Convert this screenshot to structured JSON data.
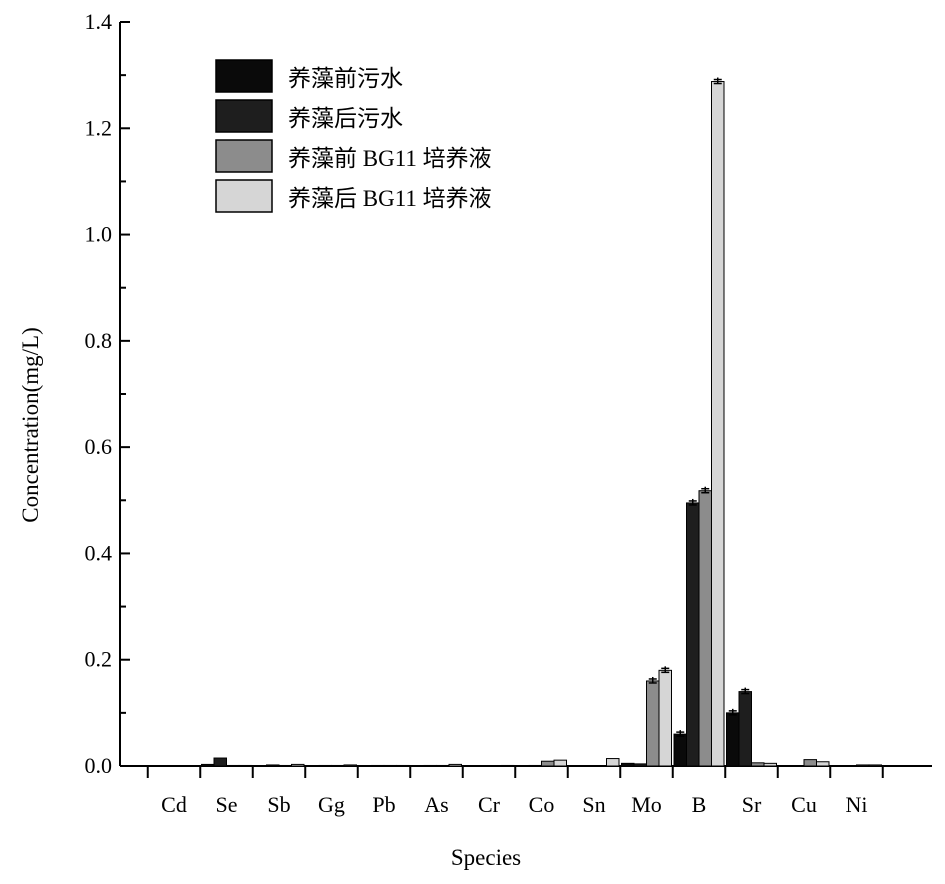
{
  "chart_data": {
    "type": "bar",
    "xlabel": "Species",
    "ylabel": "Concentration(mg/L)",
    "ylim": [
      0,
      1.4
    ],
    "y_ticks": [
      "0.0",
      "0.2",
      "0.4",
      "0.6",
      "0.8",
      "1.0",
      "1.2",
      "1.4"
    ],
    "categories": [
      "Cd",
      "Se",
      "Sb",
      "Gg",
      "Pb",
      "As",
      "Cr",
      "Co",
      "Sn",
      "Mo",
      "B",
      "Sr",
      "Cu",
      "Ni"
    ],
    "legend_position": "top-left",
    "series": [
      {
        "name": "养藻前污水",
        "color": "#0a0a0a",
        "values": [
          0.0,
          0.003,
          0.0,
          0.0,
          0.0,
          0.0,
          0.0,
          0.0,
          0.0,
          0.005,
          0.06,
          0.1,
          0.0,
          0.0
        ]
      },
      {
        "name": "养藻后污水",
        "color": "#1e1e1e",
        "values": [
          0.0,
          0.015,
          0.002,
          0.001,
          0.001,
          0.001,
          0.0,
          0.001,
          0.0,
          0.004,
          0.495,
          0.14,
          0.0,
          0.0
        ]
      },
      {
        "name": "养藻前 BG11 培养液",
        "color": "#8c8c8c",
        "values": [
          0.0,
          0.001,
          0.001,
          0.001,
          0.001,
          0.001,
          0.0,
          0.009,
          0.0,
          0.16,
          0.518,
          0.006,
          0.012,
          0.002
        ]
      },
      {
        "name": "养藻后 BG11 培养液",
        "color": "#d6d6d6",
        "values": [
          0.0,
          0.001,
          0.003,
          0.002,
          0.001,
          0.003,
          0.001,
          0.011,
          0.014,
          0.18,
          1.288,
          0.005,
          0.008,
          0.002
        ]
      }
    ]
  }
}
